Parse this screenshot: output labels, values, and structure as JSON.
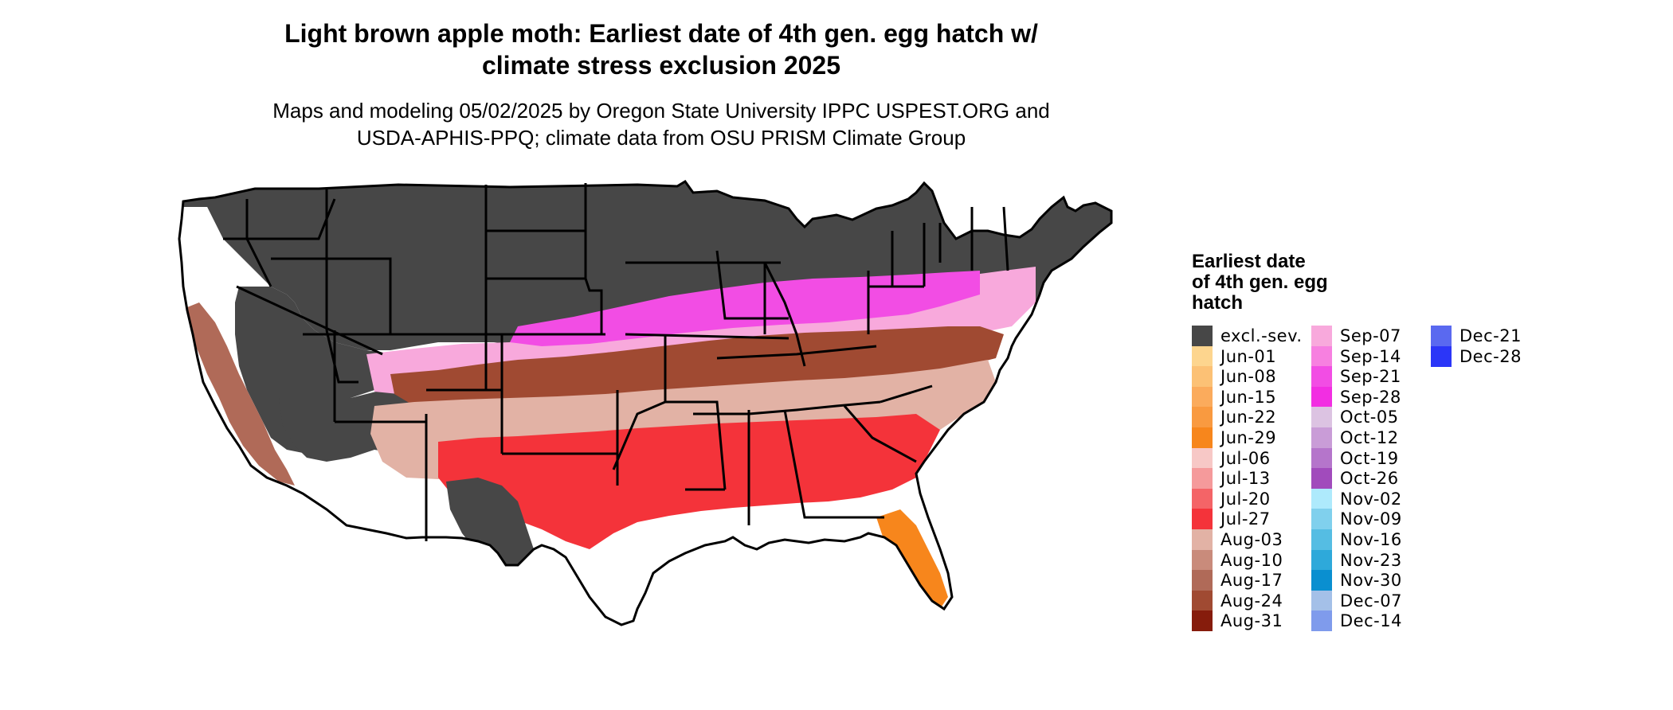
{
  "header": {
    "title_line1": "Light brown apple moth: Earliest date of 4th gen. egg hatch w/",
    "title_line2": "climate stress exclusion 2025",
    "subtitle_line1": "Maps and modeling 05/02/2025 by Oregon State University IPPC USPEST.ORG and",
    "subtitle_line2": "USDA-APHIS-PPQ; climate data from OSU PRISM Climate Group"
  },
  "map": {
    "region": "conterminous-united-states",
    "border_color": "#000000",
    "zones": [
      {
        "name": "excluded-north",
        "legend": "excl.-sev.",
        "color": "#474747"
      },
      {
        "name": "southwest-desert-excluded",
        "legend": "excl.-sev.",
        "color": "#474747"
      },
      {
        "name": "south-texas-excluded",
        "legend": "excl.-sev.",
        "color": "#474747"
      },
      {
        "name": "pacific-coast-not-mapped",
        "legend": "",
        "color": "#ffffff"
      },
      {
        "name": "california-valleys",
        "legend": "Aug-17",
        "color": "#b06a58"
      },
      {
        "name": "mid-latitude-band",
        "legend": "Sep-21",
        "color": "#f24de4"
      },
      {
        "name": "mid-latitude-band-edge",
        "legend": "Sep-07",
        "color": "#f8a9dc"
      },
      {
        "name": "oklahoma-tennessee-band",
        "legend": "Aug-24",
        "color": "#a04a32"
      },
      {
        "name": "central-south-band",
        "legend": "Aug-03",
        "color": "#e2b2a5"
      },
      {
        "name": "gulf-coast-band",
        "legend": "Jul-27",
        "color": "#f4333a"
      },
      {
        "name": "florida-peninsula",
        "legend": "Jun-29",
        "color": "#f7861c"
      }
    ]
  },
  "legend": {
    "title": [
      "Earliest date",
      "of 4th gen. egg",
      "hatch"
    ],
    "items": [
      {
        "label": "excl.-sev.",
        "color": "#474747"
      },
      {
        "label": "Jun-01",
        "color": "#fdd58e"
      },
      {
        "label": "Jun-08",
        "color": "#fcc175"
      },
      {
        "label": "Jun-15",
        "color": "#fbab5c"
      },
      {
        "label": "Jun-22",
        "color": "#f99a40"
      },
      {
        "label": "Jun-29",
        "color": "#f7861c"
      },
      {
        "label": "Jul-06",
        "color": "#f7c8c6"
      },
      {
        "label": "Jul-13",
        "color": "#f59a9b"
      },
      {
        "label": "Jul-20",
        "color": "#f46467"
      },
      {
        "label": "Jul-27",
        "color": "#f4333a"
      },
      {
        "label": "Aug-03",
        "color": "#e2b2a5"
      },
      {
        "label": "Aug-10",
        "color": "#c98b7b"
      },
      {
        "label": "Aug-17",
        "color": "#b06a58"
      },
      {
        "label": "Aug-24",
        "color": "#a04a32"
      },
      {
        "label": "Aug-31",
        "color": "#861c0c"
      },
      {
        "label": "Sep-07",
        "color": "#f8a9dc"
      },
      {
        "label": "Sep-14",
        "color": "#f780e0"
      },
      {
        "label": "Sep-21",
        "color": "#f24de4"
      },
      {
        "label": "Sep-28",
        "color": "#f22ee2"
      },
      {
        "label": "Oct-05",
        "color": "#dcc3e2"
      },
      {
        "label": "Oct-12",
        "color": "#c99cd7"
      },
      {
        "label": "Oct-19",
        "color": "#b575cb"
      },
      {
        "label": "Oct-26",
        "color": "#a14bbc"
      },
      {
        "label": "Nov-02",
        "color": "#aeeafc"
      },
      {
        "label": "Nov-09",
        "color": "#80d0ed"
      },
      {
        "label": "Nov-16",
        "color": "#55bde3"
      },
      {
        "label": "Nov-23",
        "color": "#2ea9da"
      },
      {
        "label": "Nov-30",
        "color": "#0a8fd0"
      },
      {
        "label": "Dec-07",
        "color": "#a4c0e8"
      },
      {
        "label": "Dec-14",
        "color": "#7f9bec"
      },
      {
        "label": "Dec-21",
        "color": "#5a69f0"
      },
      {
        "label": "Dec-28",
        "color": "#2b36f8"
      }
    ]
  }
}
